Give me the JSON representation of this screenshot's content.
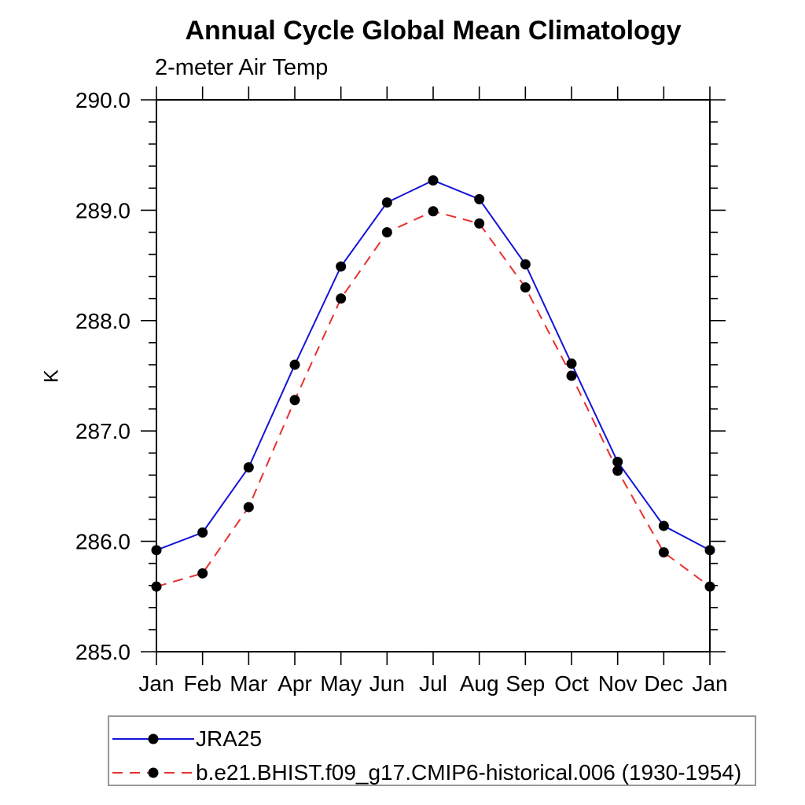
{
  "chart_data": {
    "type": "line",
    "title": "Annual Cycle Global Mean Climatology",
    "subtitle": "2-meter Air Temp",
    "ylabel": "K",
    "x_categories": [
      "Jan",
      "Feb",
      "Mar",
      "Apr",
      "May",
      "Jun",
      "Jul",
      "Aug",
      "Sep",
      "Oct",
      "Nov",
      "Dec",
      "Jan"
    ],
    "ylim": [
      285.0,
      290.0
    ],
    "ytick_labels": [
      "285.0",
      "286.0",
      "287.0",
      "288.0",
      "289.0",
      "290.0"
    ],
    "ytick_minor_step": 0.2,
    "grid": false,
    "frame_color": "#000000",
    "legend_position": "bottom-left boxed",
    "series": [
      {
        "name": "JRA25",
        "color": "#1414d8",
        "line_style": "solid",
        "marker": "filled-circle",
        "marker_color": "#000000",
        "values": [
          285.92,
          286.08,
          286.67,
          287.6,
          288.49,
          289.07,
          289.27,
          289.1,
          288.51,
          287.61,
          286.72,
          286.14,
          285.92
        ]
      },
      {
        "name": "b.e21.BHIST.f09_g17.CMIP6-historical.006 (1930-1954)",
        "color": "#e83030",
        "line_style": "dashed",
        "marker": "filled-circle",
        "marker_color": "#000000",
        "values": [
          285.59,
          285.71,
          286.31,
          287.28,
          288.2,
          288.8,
          288.99,
          288.88,
          288.3,
          287.5,
          286.64,
          285.9,
          285.59
        ]
      }
    ]
  }
}
